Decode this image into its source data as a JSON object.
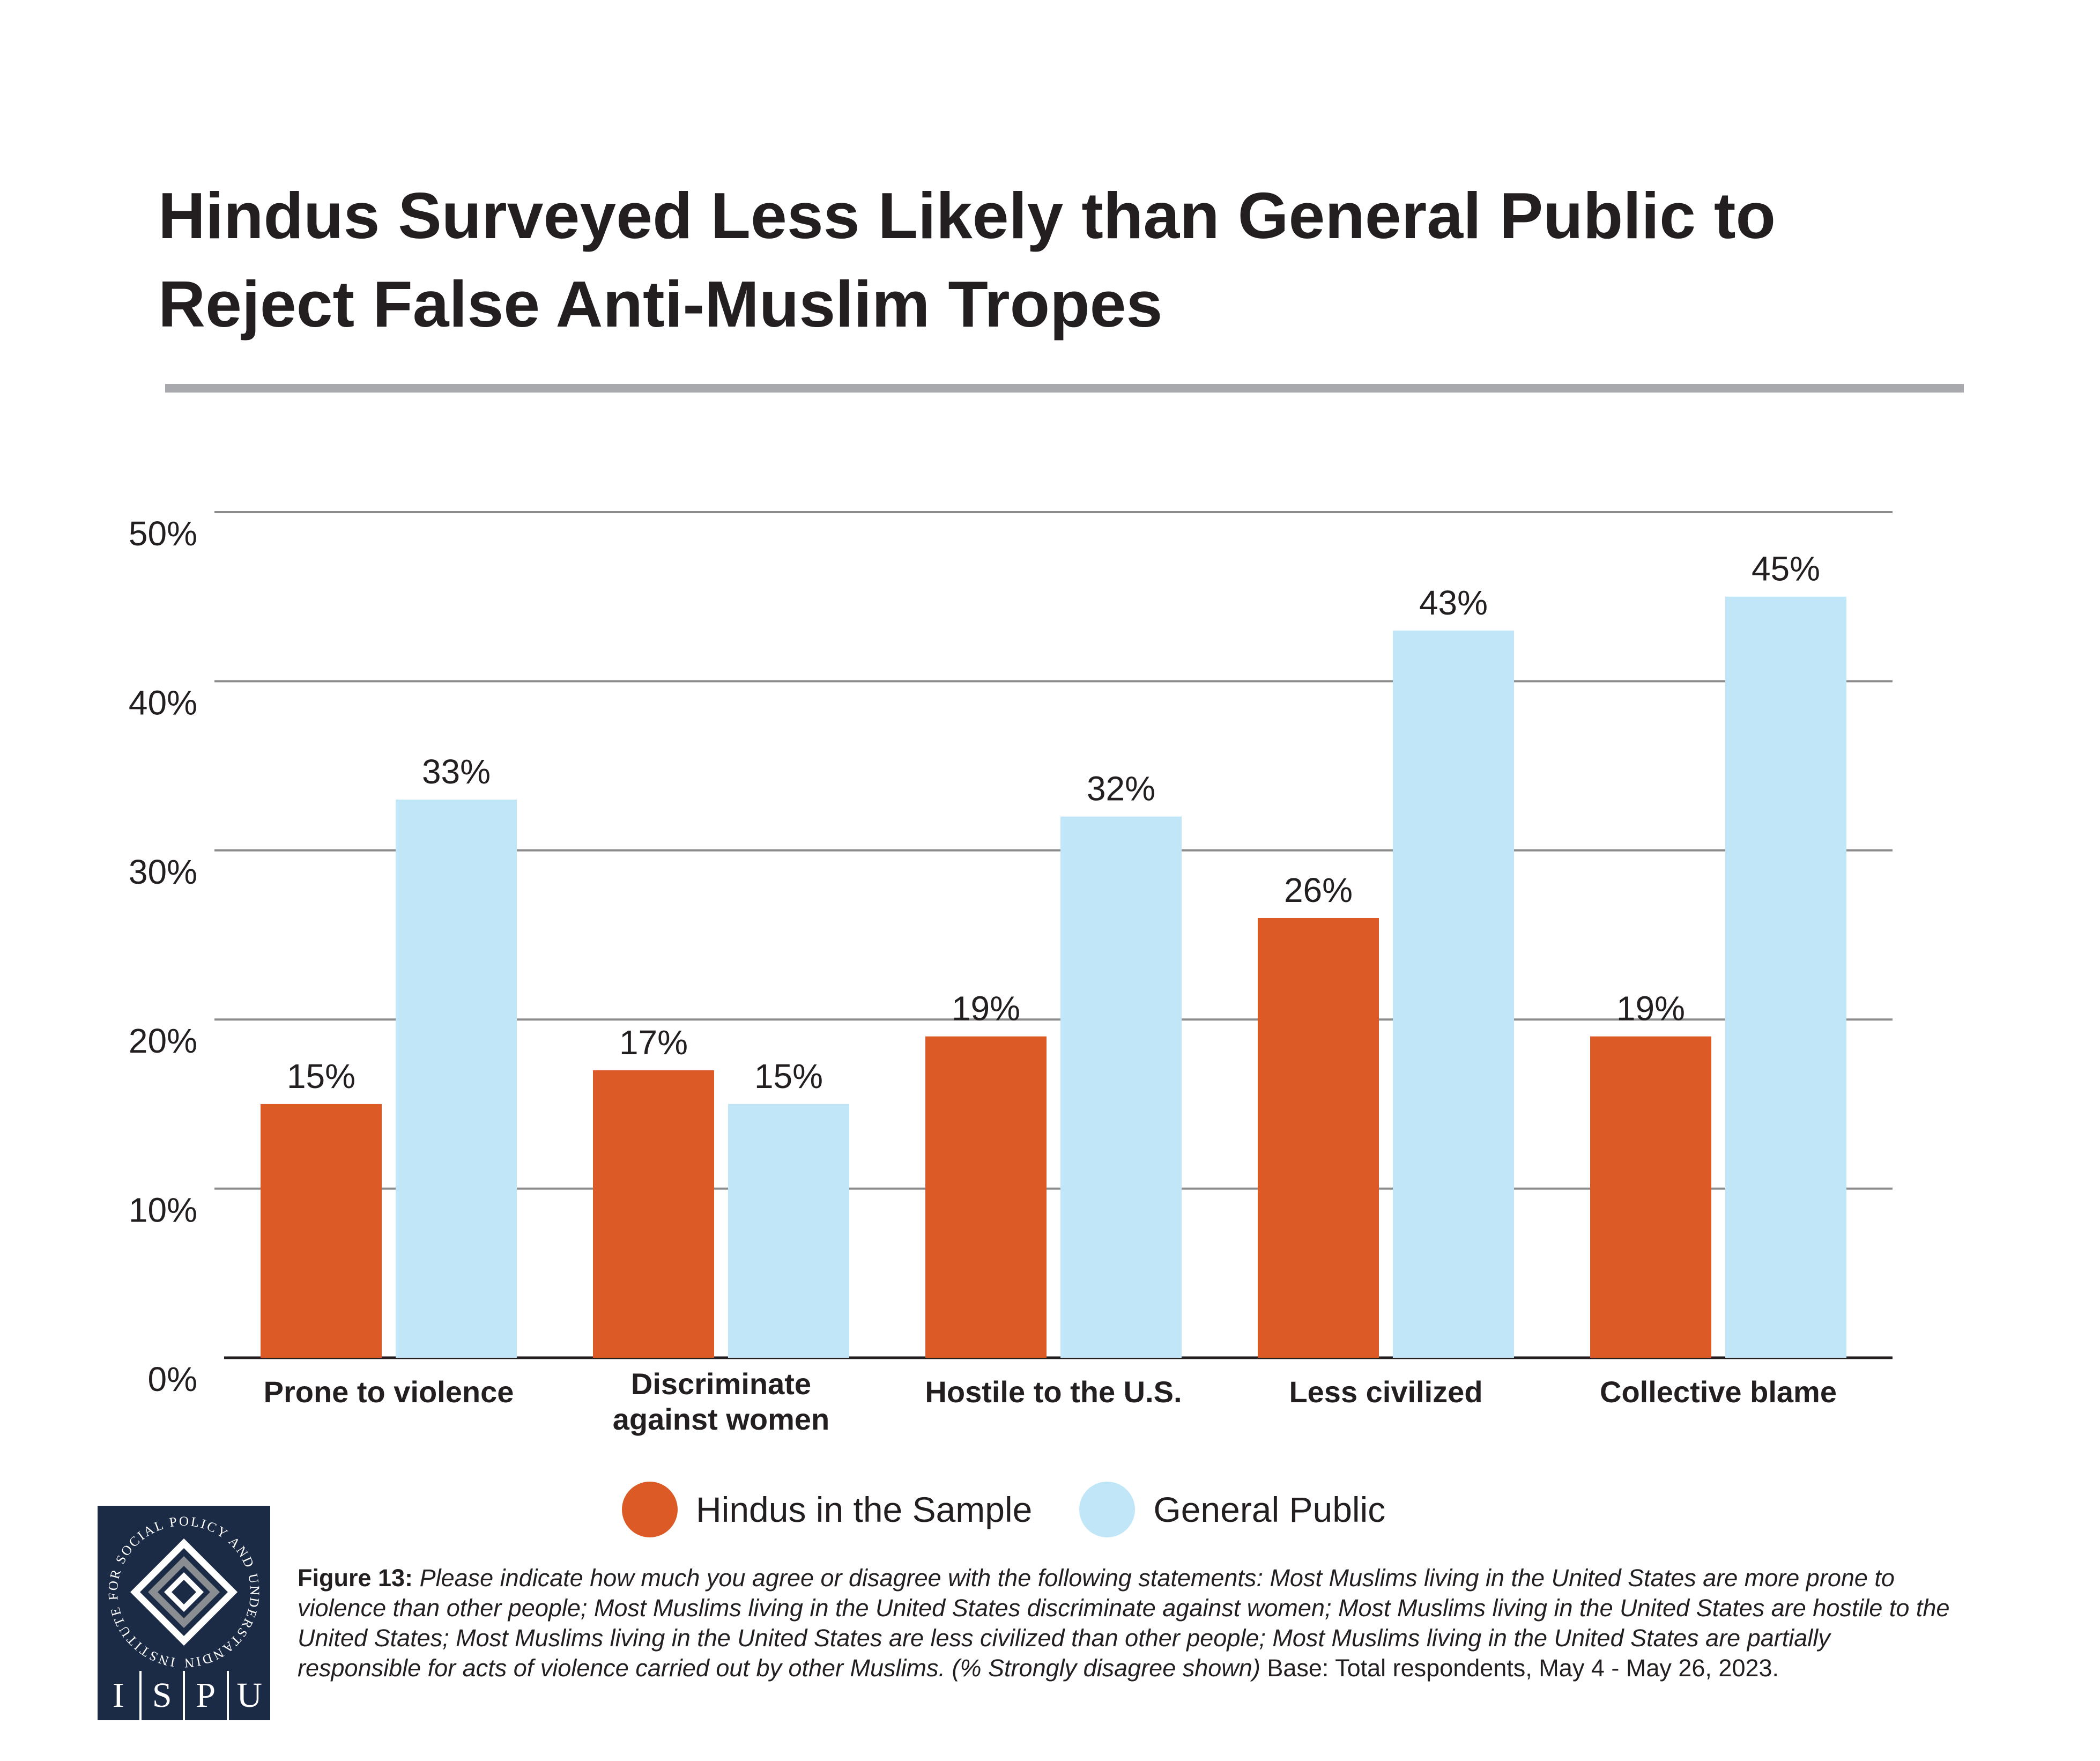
{
  "title_lines": [
    "Hindus Surveyed Less Likely than General Public to",
    "Reject False Anti-Muslim Tropes"
  ],
  "colors": {
    "hindus": "#dc5a26",
    "general": "#c1e6f8",
    "title_rule": "#a7a9ac",
    "gridline": "#8c8c8c",
    "logo_bg": "#1c2b45"
  },
  "chart_data": {
    "type": "bar",
    "categories": [
      [
        "Prone to violence"
      ],
      [
        "Discriminate",
        "against women"
      ],
      [
        "Hostile to the U.S."
      ],
      [
        "Less civilized"
      ],
      [
        "Collective blame"
      ]
    ],
    "series": [
      {
        "name": "Hindus in the Sample",
        "color": "#dc5a26",
        "values": [
          15,
          17,
          19,
          26,
          19
        ],
        "labels": [
          "15%",
          "17%",
          "19%",
          "26%",
          "19%"
        ]
      },
      {
        "name": "General Public",
        "color": "#c1e6f8",
        "values": [
          33,
          15,
          32,
          43,
          45
        ],
        "labels": [
          "33%",
          "15%",
          "32%",
          "43%",
          "45%"
        ]
      }
    ],
    "ylim": [
      0,
      50
    ],
    "yticks": [
      0,
      10,
      20,
      30,
      40,
      50
    ],
    "ytick_labels": [
      "0%",
      "10%",
      "20%",
      "30%",
      "40%",
      "50%"
    ],
    "grid": true,
    "legend_position": "bottom"
  },
  "legend": [
    {
      "label": "Hindus in the Sample",
      "color": "#dc5a26"
    },
    {
      "label": "General Public",
      "color": "#c1e6f8"
    }
  ],
  "logo": {
    "ring_text": "INSTITUTE FOR SOCIAL POLICY AND UNDERSTANDING",
    "letters": [
      "I",
      "S",
      "P",
      "U"
    ]
  },
  "footnote": {
    "label": "Figure 13:",
    "question": "Please indicate how much you agree or disagree with the following statements: Most Muslims living in the United States are more prone to violence than other people; Most Muslims living in the United States discriminate against women; Most Muslims living in the United States are hostile to the United States; Most Muslims living in the United States are less civilized than other people; Most Muslims living in the United States are partially responsible for acts of violence carried out by other Muslims. (% Strongly disagree shown)",
    "base": "Base: Total respondents, May 4 - May 26, 2023."
  }
}
